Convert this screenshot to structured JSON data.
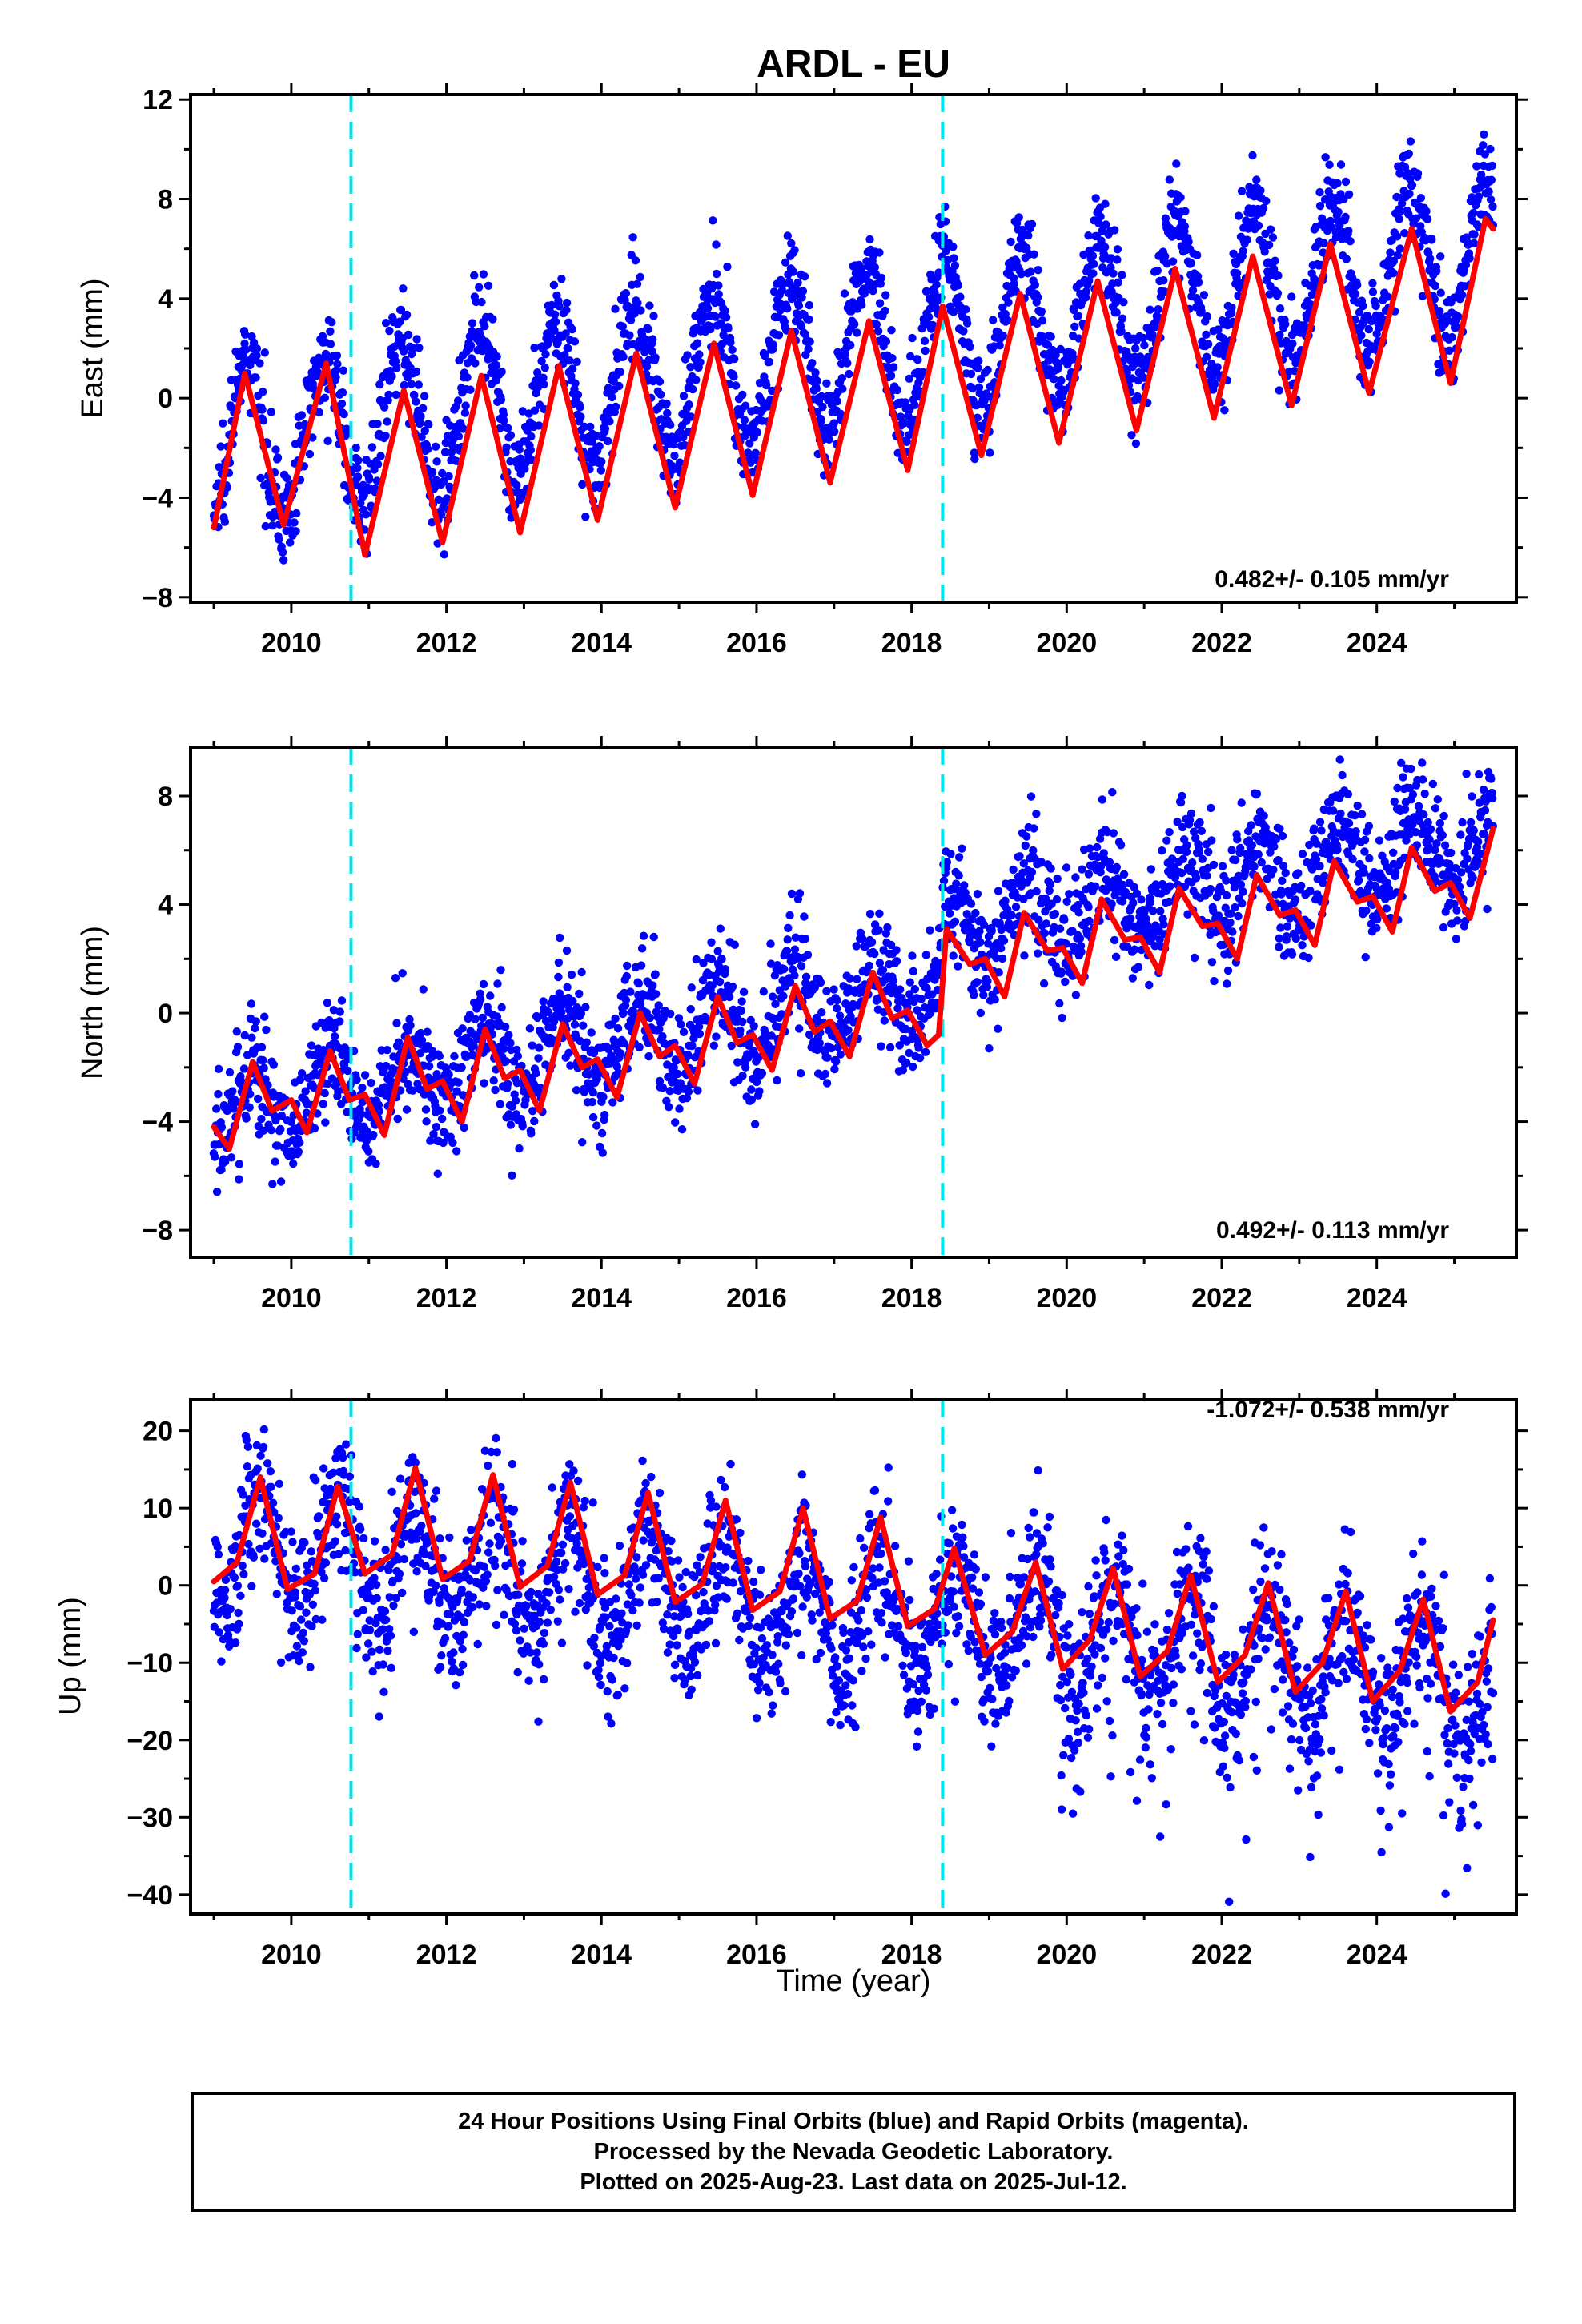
{
  "title": "ARDL - EU",
  "xlabel": "Time (year)",
  "colors": {
    "points": "#0000ff",
    "fit": "#ff0000",
    "event": "#00e5ee",
    "frame": "#000000"
  },
  "caption": {
    "line1": "24 Hour Positions Using Final Orbits (blue) and Rapid Orbits (magenta).",
    "line2": "Processed by the Nevada Geodetic Laboratory.",
    "line3": "Plotted on 2025-Aug-23. Last data on 2025-Jul-12."
  },
  "chart_data": [
    {
      "type": "scatter",
      "component": "east",
      "ylabel": "East (mm)",
      "rate_label": "0.482+/- 0.105 mm/yr",
      "rate_position": "bottom-right",
      "xlim": [
        2008.7,
        2025.8
      ],
      "ylim": [
        -8.2,
        12.2
      ],
      "yticks": [
        -8,
        -4,
        0,
        4,
        8,
        12
      ],
      "yminor_step": 2,
      "xticks": [
        2010,
        2012,
        2014,
        2016,
        2018,
        2020,
        2022,
        2024
      ],
      "event_lines": [
        2010.77,
        2018.4
      ],
      "fit_points": [
        [
          2009.0,
          -5.2
        ],
        [
          2009.4,
          1.0
        ],
        [
          2009.9,
          -5.1
        ],
        [
          2010.45,
          1.4
        ],
        [
          2010.95,
          -6.3
        ],
        [
          2011.45,
          0.3
        ],
        [
          2011.95,
          -5.8
        ],
        [
          2012.45,
          0.9
        ],
        [
          2012.95,
          -5.4
        ],
        [
          2013.45,
          1.3
        ],
        [
          2013.95,
          -4.9
        ],
        [
          2014.45,
          1.8
        ],
        [
          2014.95,
          -4.4
        ],
        [
          2015.45,
          2.2
        ],
        [
          2015.95,
          -3.9
        ],
        [
          2016.45,
          2.7
        ],
        [
          2016.95,
          -3.4
        ],
        [
          2017.45,
          3.1
        ],
        [
          2017.95,
          -2.9
        ],
        [
          2018.4,
          3.7
        ],
        [
          2018.9,
          -2.3
        ],
        [
          2019.4,
          4.2
        ],
        [
          2019.9,
          -1.8
        ],
        [
          2020.4,
          4.7
        ],
        [
          2020.9,
          -1.3
        ],
        [
          2021.4,
          5.2
        ],
        [
          2021.9,
          -0.8
        ],
        [
          2022.4,
          5.7
        ],
        [
          2022.9,
          -0.3
        ],
        [
          2023.4,
          6.2
        ],
        [
          2023.9,
          0.2
        ],
        [
          2024.45,
          6.8
        ],
        [
          2024.95,
          0.6
        ],
        [
          2025.4,
          7.2
        ],
        [
          2025.5,
          6.8
        ]
      ],
      "scatter": {
        "x_range": [
          2009.0,
          2025.5
        ],
        "trend": {
          "y_at_2009": -2.0,
          "slope_mm_per_yr": 0.482
        },
        "seasonal_amplitude": 3.1,
        "seasonal_phase_peak": 0.42,
        "noise_sd": 1.0
      }
    },
    {
      "type": "scatter",
      "component": "north",
      "ylabel": "North (mm)",
      "rate_label": "0.492+/- 0.113 mm/yr",
      "rate_position": "bottom-right",
      "xlim": [
        2008.7,
        2025.8
      ],
      "ylim": [
        -9.0,
        9.8
      ],
      "yticks": [
        -8,
        -4,
        0,
        4,
        8
      ],
      "yminor_step": 2,
      "xticks": [
        2010,
        2012,
        2014,
        2016,
        2018,
        2020,
        2022,
        2024
      ],
      "event_lines": [
        2010.77,
        2018.4
      ],
      "fit_points": [
        [
          2009.0,
          -4.2
        ],
        [
          2009.2,
          -5.0
        ],
        [
          2009.5,
          -1.8
        ],
        [
          2009.75,
          -3.6
        ],
        [
          2010.0,
          -3.2
        ],
        [
          2010.2,
          -4.4
        ],
        [
          2010.5,
          -1.4
        ],
        [
          2010.75,
          -3.2
        ],
        [
          2010.95,
          -3.0
        ],
        [
          2011.2,
          -4.5
        ],
        [
          2011.5,
          -0.9
        ],
        [
          2011.75,
          -2.8
        ],
        [
          2011.95,
          -2.5
        ],
        [
          2012.2,
          -4.0
        ],
        [
          2012.5,
          -0.6
        ],
        [
          2012.75,
          -2.4
        ],
        [
          2012.95,
          -2.1
        ],
        [
          2013.2,
          -3.6
        ],
        [
          2013.5,
          -0.4
        ],
        [
          2013.75,
          -2.0
        ],
        [
          2013.95,
          -1.7
        ],
        [
          2014.2,
          -3.1
        ],
        [
          2014.5,
          0.0
        ],
        [
          2014.75,
          -1.6
        ],
        [
          2014.95,
          -1.2
        ],
        [
          2015.2,
          -2.6
        ],
        [
          2015.5,
          0.6
        ],
        [
          2015.75,
          -1.1
        ],
        [
          2015.95,
          -0.8
        ],
        [
          2016.2,
          -2.1
        ],
        [
          2016.5,
          1.0
        ],
        [
          2016.75,
          -0.7
        ],
        [
          2016.95,
          -0.3
        ],
        [
          2017.2,
          -1.6
        ],
        [
          2017.5,
          1.5
        ],
        [
          2017.75,
          -0.2
        ],
        [
          2017.95,
          0.1
        ],
        [
          2018.2,
          -1.2
        ],
        [
          2018.35,
          -0.8
        ],
        [
          2018.45,
          3.1
        ],
        [
          2018.75,
          1.8
        ],
        [
          2018.95,
          2.0
        ],
        [
          2019.2,
          0.6
        ],
        [
          2019.45,
          3.7
        ],
        [
          2019.75,
          2.3
        ],
        [
          2019.95,
          2.4
        ],
        [
          2020.2,
          1.1
        ],
        [
          2020.45,
          4.2
        ],
        [
          2020.75,
          2.7
        ],
        [
          2020.95,
          2.8
        ],
        [
          2021.2,
          1.5
        ],
        [
          2021.45,
          4.6
        ],
        [
          2021.75,
          3.2
        ],
        [
          2021.95,
          3.3
        ],
        [
          2022.2,
          2.0
        ],
        [
          2022.45,
          5.1
        ],
        [
          2022.75,
          3.6
        ],
        [
          2022.95,
          3.8
        ],
        [
          2023.2,
          2.5
        ],
        [
          2023.45,
          5.6
        ],
        [
          2023.75,
          4.1
        ],
        [
          2023.95,
          4.3
        ],
        [
          2024.2,
          3.0
        ],
        [
          2024.45,
          6.1
        ],
        [
          2024.75,
          4.5
        ],
        [
          2024.95,
          4.8
        ],
        [
          2025.2,
          3.5
        ],
        [
          2025.5,
          6.8
        ]
      ],
      "scatter": {
        "x_range": [
          2009.0,
          2025.5
        ],
        "trend": {
          "y_at_2009": -3.6,
          "slope_mm_per_yr": 0.492
        },
        "step_at_2018_4": 2.0,
        "seasonal_amplitude": 1.4,
        "seasonal_phase_peak": 0.5,
        "noise_sd": 1.1
      }
    },
    {
      "type": "scatter",
      "component": "up",
      "ylabel": "Up (mm)",
      "rate_label": "-1.072+/- 0.538 mm/yr",
      "rate_position": "top-right",
      "xlim": [
        2008.7,
        2025.8
      ],
      "ylim": [
        -42.5,
        24.0
      ],
      "yticks": [
        -40,
        -30,
        -20,
        -10,
        0,
        10,
        20
      ],
      "yminor_step": 5,
      "xticks": [
        2010,
        2012,
        2014,
        2016,
        2018,
        2020,
        2022,
        2024
      ],
      "event_lines": [
        2010.77,
        2018.4
      ],
      "fit_points": [
        [
          2009.0,
          0.5
        ],
        [
          2009.3,
          3.0
        ],
        [
          2009.6,
          14.0
        ],
        [
          2009.95,
          -0.5
        ],
        [
          2010.3,
          1.5
        ],
        [
          2010.6,
          12.8
        ],
        [
          2010.95,
          1.5
        ],
        [
          2011.3,
          4.0
        ],
        [
          2011.6,
          15.2
        ],
        [
          2011.95,
          0.8
        ],
        [
          2012.3,
          3.2
        ],
        [
          2012.6,
          14.3
        ],
        [
          2012.95,
          -0.2
        ],
        [
          2013.3,
          2.5
        ],
        [
          2013.6,
          13.3
        ],
        [
          2013.95,
          -1.2
        ],
        [
          2014.3,
          1.3
        ],
        [
          2014.6,
          12.0
        ],
        [
          2014.95,
          -2.2
        ],
        [
          2015.3,
          0.2
        ],
        [
          2015.6,
          11.0
        ],
        [
          2015.95,
          -3.2
        ],
        [
          2016.3,
          -0.8
        ],
        [
          2016.6,
          10.0
        ],
        [
          2016.95,
          -4.3
        ],
        [
          2017.3,
          -2.0
        ],
        [
          2017.6,
          8.8
        ],
        [
          2017.95,
          -5.3
        ],
        [
          2018.3,
          -3.0
        ],
        [
          2018.55,
          4.8
        ],
        [
          2018.95,
          -9.0
        ],
        [
          2019.3,
          -6.0
        ],
        [
          2019.6,
          3.0
        ],
        [
          2019.95,
          -10.8
        ],
        [
          2020.3,
          -7.0
        ],
        [
          2020.6,
          2.2
        ],
        [
          2020.95,
          -11.8
        ],
        [
          2021.3,
          -8.5
        ],
        [
          2021.6,
          1.3
        ],
        [
          2021.95,
          -12.5
        ],
        [
          2022.3,
          -9.0
        ],
        [
          2022.6,
          0.3
        ],
        [
          2022.95,
          -13.8
        ],
        [
          2023.3,
          -10.0
        ],
        [
          2023.6,
          -0.8
        ],
        [
          2023.95,
          -15.0
        ],
        [
          2024.3,
          -11.0
        ],
        [
          2024.6,
          -1.8
        ],
        [
          2024.95,
          -16.3
        ],
        [
          2025.3,
          -12.5
        ],
        [
          2025.5,
          -4.5
        ]
      ],
      "scatter": {
        "x_range": [
          2009.0,
          2025.5
        ],
        "trend": {
          "y_at_2009": 5.5,
          "slope_mm_per_yr": -1.072
        },
        "seasonal_amplitude": 7.2,
        "seasonal_phase_peak": 0.6,
        "noise_sd": 4.8
      }
    }
  ]
}
